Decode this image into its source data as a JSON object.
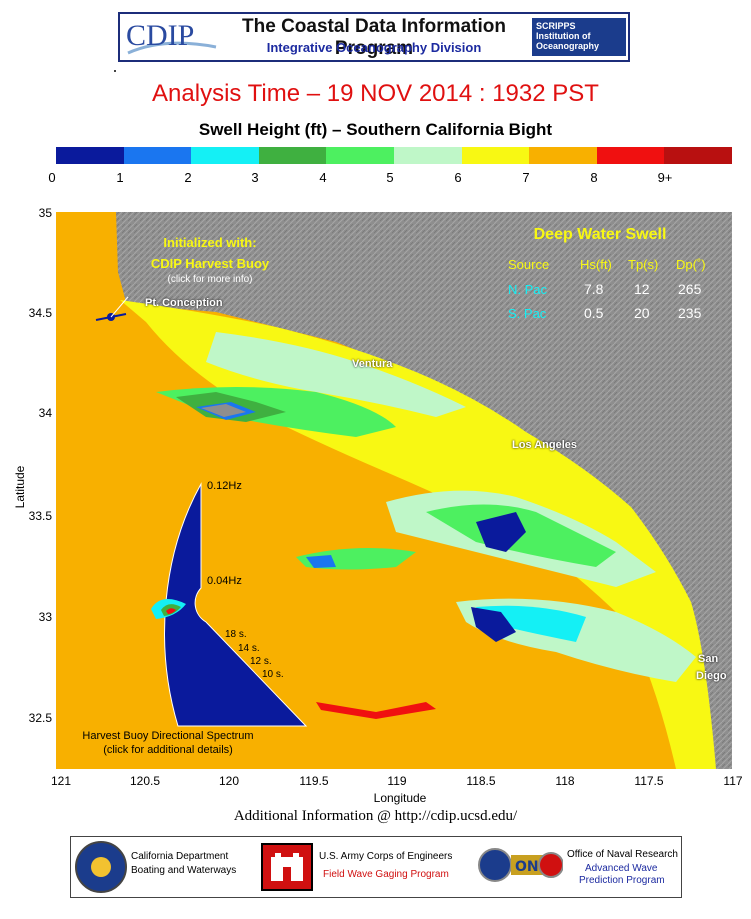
{
  "header": {
    "logo_text": "CDIP",
    "title": "The Coastal Data Information Program",
    "subtitle": "Integrative Oceanography Division",
    "scripps_lines": [
      "SCRIPPS",
      "Institution of",
      "Oceanography"
    ]
  },
  "analysis_time": "Analysis Time –  19 NOV 2014 : 1932 PST",
  "map_title": "Swell Height (ft) – Southern California Bight",
  "colorbar": {
    "colors": [
      "#0a1a9c",
      "#1a76f0",
      "#14f0f5",
      "#3fb040",
      "#4df060",
      "#bff7c8",
      "#f8f813",
      "#f8b000",
      "#f01010",
      "#b81010"
    ],
    "tick_labels": [
      "0",
      "1",
      "2",
      "3",
      "4",
      "5",
      "6",
      "7",
      "8",
      "9+"
    ]
  },
  "axes": {
    "xlabel": "Longitude",
    "ylabel": "Latitude",
    "x_ticks": [
      "121",
      "120.5",
      "120",
      "119.5",
      "119",
      "118.5",
      "118",
      "117.5",
      "117"
    ],
    "y_ticks": [
      "35",
      "34.5",
      "34",
      "33.5",
      "33",
      "32.5"
    ]
  },
  "map_labels": {
    "initialized_line1": "Initialized with:",
    "initialized_line2": "CDIP Harvest Buoy",
    "click_more": "(click for more info)",
    "pt_conception": "Pt. Conception",
    "ventura": "Ventura",
    "los_angeles": "Los Angeles",
    "san": "San",
    "diego": "Diego"
  },
  "swell_table": {
    "title": "Deep Water Swell",
    "headers": [
      "Source",
      "Hs(ft)",
      "Tp(s)",
      "Dp(˚)"
    ],
    "rows": [
      {
        "source": "N. Pac",
        "hs": "7.8",
        "tp": "12",
        "dp": "265"
      },
      {
        "source": "S. Pac",
        "hs": "0.5",
        "tp": "20",
        "dp": "235"
      }
    ]
  },
  "spectrum": {
    "freq_outer": "0.12Hz",
    "freq_inner": "0.04Hz",
    "periods": [
      "18 s.",
      "14 s.",
      "12 s.",
      "10 s."
    ],
    "caption1": "Harvest Buoy Directional Spectrum",
    "caption2": "(click for additional details)"
  },
  "additional_info": "Additional Information @ http://cdip.ucsd.edu/",
  "footer": {
    "cdbw_line1": "California Department",
    "cdbw_line2": "Boating and Waterways",
    "usace_line1": "U.S. Army Corps of Engineers",
    "usace_line2": "Field Wave Gaging Program",
    "onr_line1": "Office of Naval Research",
    "onr_line2": "Advanced Wave",
    "onr_line3": "Prediction Program"
  }
}
